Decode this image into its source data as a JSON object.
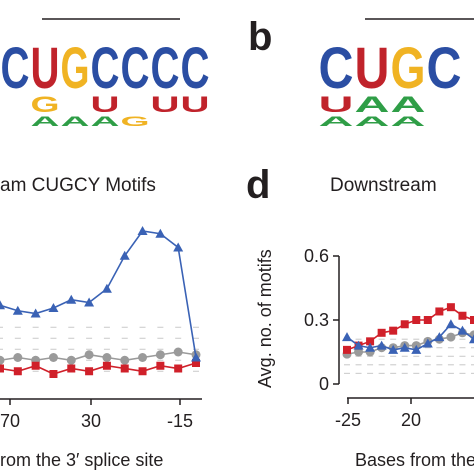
{
  "colors": {
    "C": "#2b4ea3",
    "U": "#c0232b",
    "G": "#f0b323",
    "A": "#2f9e47",
    "series_blue": "#3a62b5",
    "series_red": "#d0202a",
    "series_gray": "#9a9a9a",
    "axis": "#231f20"
  },
  "panel_labels": {
    "b": "b",
    "d": "d"
  },
  "logos": {
    "left": {
      "columns": [
        {
          "top": "C",
          "mid": "",
          "bot": ""
        },
        {
          "top": "U",
          "mid": "G",
          "bot": "A"
        },
        {
          "top": "G",
          "mid": "",
          "bot": "A"
        },
        {
          "top": "C",
          "mid": "U",
          "bot": "A"
        },
        {
          "top": "C",
          "mid": "",
          "bot": "G"
        },
        {
          "top": "C",
          "mid": "U",
          "bot": ""
        },
        {
          "top": "C",
          "mid": "U",
          "bot": ""
        }
      ]
    },
    "right": {
      "columns": [
        {
          "top": "C",
          "mid": "U",
          "bot": "A"
        },
        {
          "top": "U",
          "mid": "A",
          "bot": "A"
        },
        {
          "top": "G",
          "mid": "A",
          "bot": "A"
        },
        {
          "top": "C",
          "mid": "",
          "bot": ""
        }
      ]
    }
  },
  "chart_data": [
    {
      "type": "line",
      "title": "am CUGCY Motifs",
      "xlabel": "rom the 3′ splice site",
      "ylabel": "",
      "x_ticks": [
        "70",
        "30",
        "-15"
      ],
      "series": [
        {
          "color": "blue",
          "marker": "triangle",
          "x": [
            -70,
            -65,
            -60,
            -55,
            -50,
            -45,
            -40,
            -35,
            -30,
            -25,
            -20,
            -15
          ],
          "y": [
            0.29,
            0.27,
            0.26,
            0.28,
            0.31,
            0.3,
            0.35,
            0.47,
            0.56,
            0.55,
            0.5,
            0.1
          ]
        },
        {
          "color": "red",
          "marker": "square",
          "x": [
            -70,
            -65,
            -60,
            -55,
            -50,
            -45,
            -40,
            -35,
            -30,
            -25,
            -20,
            -15
          ],
          "y": [
            0.06,
            0.05,
            0.07,
            0.04,
            0.06,
            0.05,
            0.07,
            0.06,
            0.05,
            0.07,
            0.06,
            0.08
          ]
        },
        {
          "color": "gray",
          "marker": "circle",
          "x": [
            -70,
            -65,
            -60,
            -55,
            -50,
            -45,
            -40,
            -35,
            -30,
            -25,
            -20,
            -15
          ],
          "y": [
            0.09,
            0.1,
            0.09,
            0.1,
            0.09,
            0.11,
            0.1,
            0.09,
            0.1,
            0.11,
            0.12,
            0.11
          ]
        }
      ]
    },
    {
      "type": "line",
      "title": "Downstream",
      "xlabel": "Bases from the",
      "ylabel": "Avg. no. of motifs",
      "ylim": [
        0,
        0.6
      ],
      "y_ticks": [
        "0",
        "0.3",
        "0.6"
      ],
      "x_ticks": [
        "-25",
        "20"
      ],
      "series": [
        {
          "color": "blue",
          "marker": "triangle",
          "x": [
            -25,
            -24,
            -23,
            -22,
            -21,
            -20,
            -19,
            -18,
            -17,
            -16,
            -15,
            -14
          ],
          "y": [
            0.22,
            0.18,
            0.17,
            0.18,
            0.16,
            0.17,
            0.16,
            0.19,
            0.22,
            0.28,
            0.25,
            0.21
          ]
        },
        {
          "color": "red",
          "marker": "square",
          "x": [
            -25,
            -24,
            -23,
            -22,
            -21,
            -20,
            -19,
            -18,
            -17,
            -16,
            -15,
            -14
          ],
          "y": [
            0.16,
            0.18,
            0.2,
            0.24,
            0.25,
            0.28,
            0.3,
            0.3,
            0.34,
            0.36,
            0.32,
            0.3
          ]
        },
        {
          "color": "gray",
          "marker": "circle",
          "x": [
            -25,
            -24,
            -23,
            -22,
            -21,
            -20,
            -19,
            -18,
            -17,
            -16,
            -15,
            -14
          ],
          "y": [
            0.14,
            0.15,
            0.15,
            0.17,
            0.17,
            0.18,
            0.18,
            0.2,
            0.21,
            0.22,
            0.24,
            0.23
          ]
        }
      ]
    }
  ]
}
